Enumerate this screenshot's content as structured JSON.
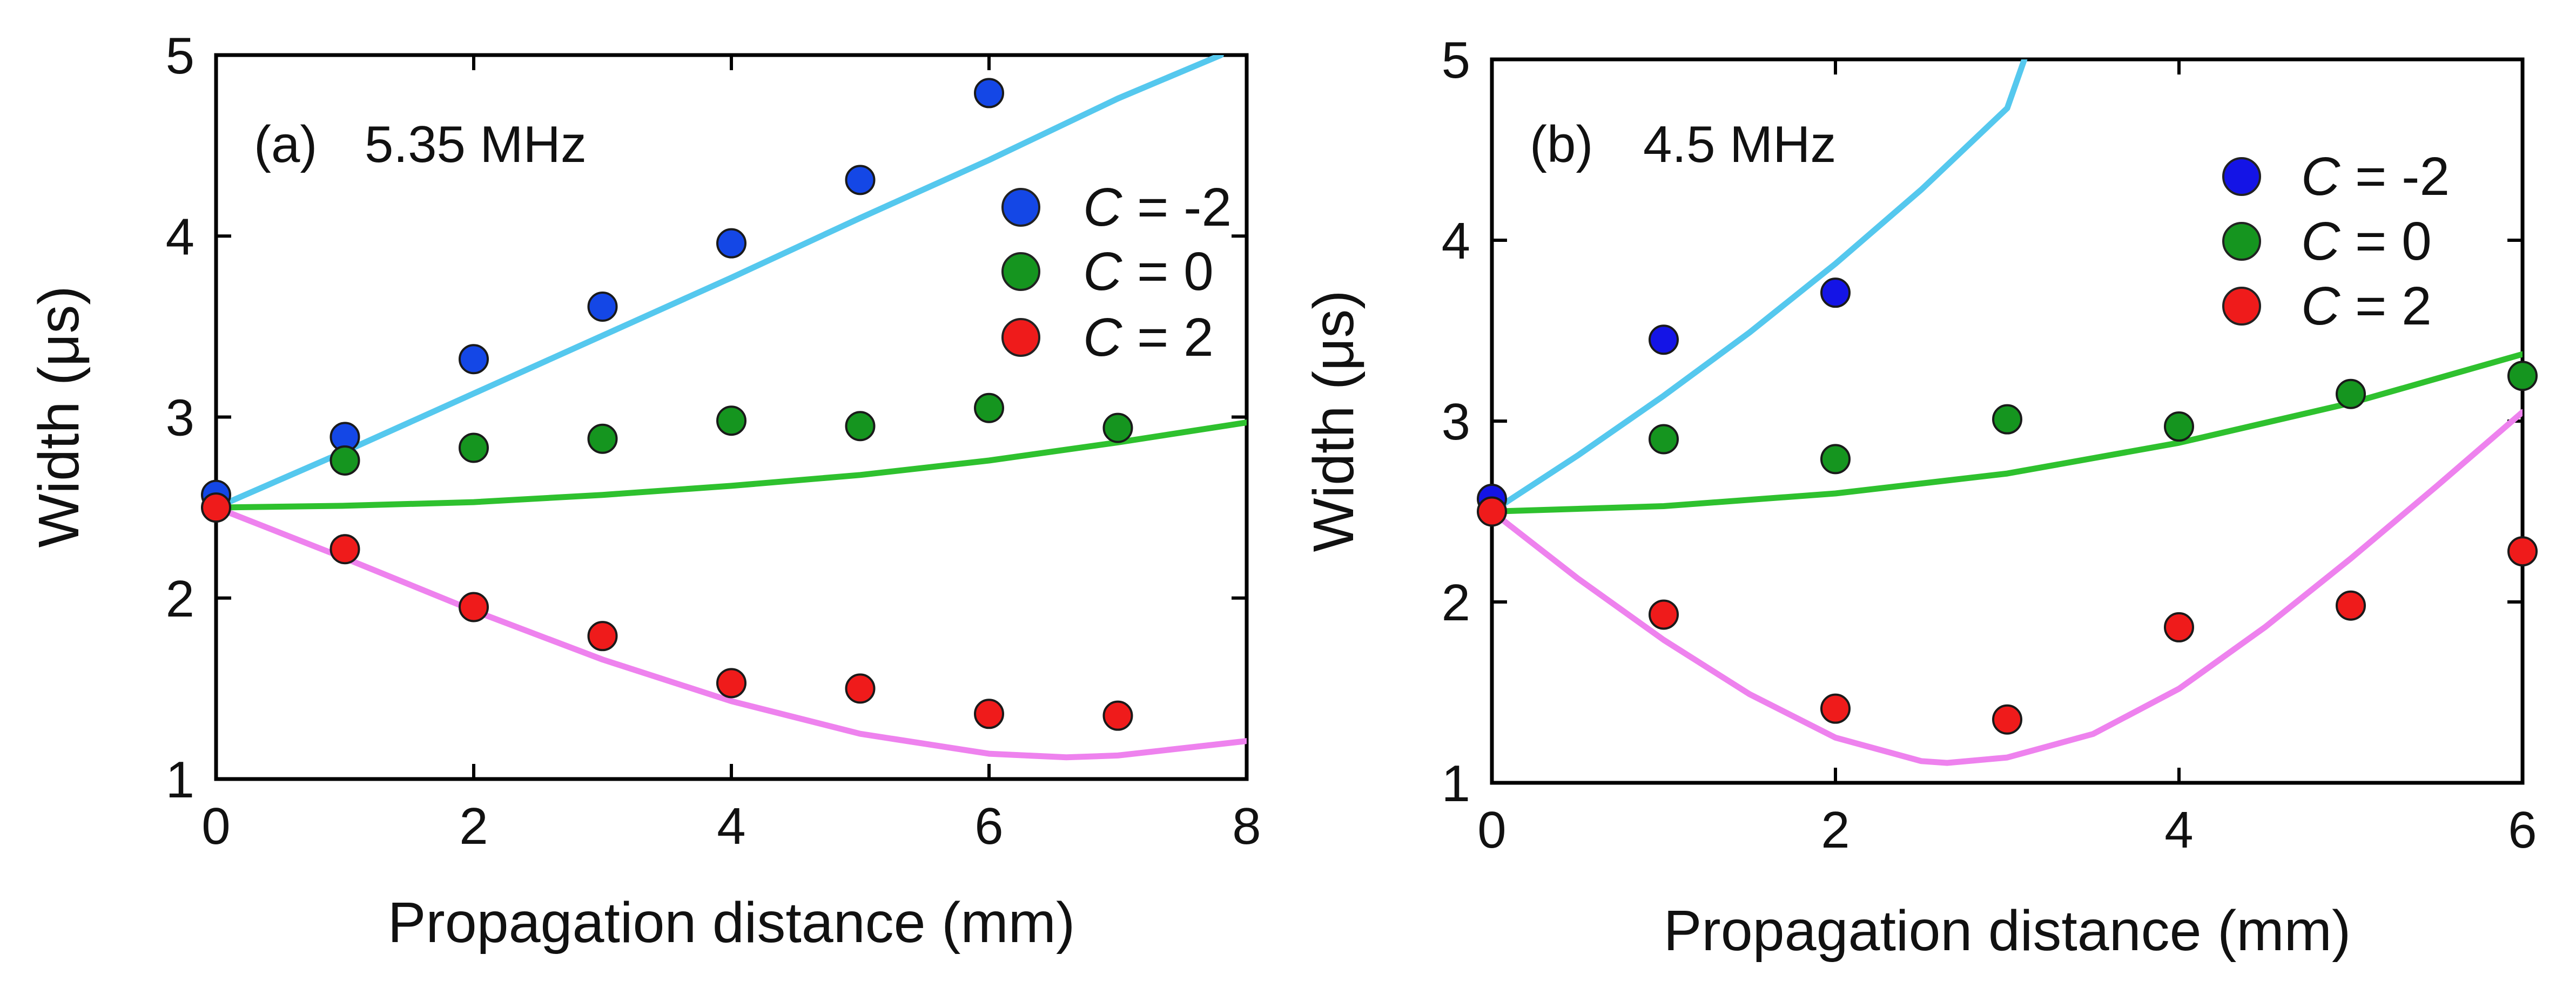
{
  "chart_data": [
    {
      "type": "scatter",
      "panel_label": "(a)",
      "annotation": "5.35 MHz",
      "xlabel": "Propagation distance (mm)",
      "ylabel": "Width (μs)",
      "xlim": [
        0,
        8
      ],
      "ylim": [
        1,
        5
      ],
      "xticks": [
        0,
        2,
        4,
        6,
        8
      ],
      "yticks": [
        1,
        2,
        3,
        4,
        5
      ],
      "grid": false,
      "legend_position": "top-right",
      "series": [
        {
          "name": "C = -2",
          "legend_symbol": "C",
          "legend_value": " = -2",
          "color": "#1447e6",
          "points": {
            "x": [
              0,
              1,
              2,
              3,
              4,
              5,
              6
            ],
            "y": [
              2.57,
              2.89,
              3.32,
              3.61,
              3.96,
              4.31,
              4.79
            ]
          }
        },
        {
          "name": "C = 0",
          "legend_symbol": "C",
          "legend_value": " = 0",
          "color": "#15951f",
          "points": {
            "x": [
              1,
              2,
              3,
              4,
              5,
              6,
              7
            ],
            "y": [
              2.76,
              2.83,
              2.88,
              2.98,
              2.95,
              3.05,
              2.94
            ]
          }
        },
        {
          "name": "C = 2",
          "legend_symbol": "C",
          "legend_value": " = 2",
          "color": "#ef1b1b",
          "points": {
            "x": [
              0,
              1,
              2,
              3,
              4,
              5,
              6,
              7
            ],
            "y": [
              2.5,
              2.27,
              1.95,
              1.79,
              1.53,
              1.5,
              1.36,
              1.35
            ]
          }
        }
      ],
      "fit_curves": [
        {
          "series": "C = -2",
          "color": "#55c8ee",
          "x": [
            0,
            1,
            2,
            3,
            4,
            5,
            6,
            7,
            7.8
          ],
          "y": [
            2.5,
            2.81,
            3.13,
            3.45,
            3.77,
            4.1,
            4.42,
            4.76,
            5.0
          ]
        },
        {
          "series": "C = 0",
          "color": "#2ec12e",
          "x": [
            0,
            1,
            2,
            3,
            4,
            5,
            6,
            7,
            8
          ],
          "y": [
            2.5,
            2.51,
            2.53,
            2.57,
            2.62,
            2.68,
            2.76,
            2.86,
            2.97
          ]
        },
        {
          "series": "C = 2",
          "color": "#ee82ee",
          "x": [
            0,
            1,
            2,
            3,
            4,
            5,
            6,
            6.6,
            7,
            8
          ],
          "y": [
            2.5,
            2.22,
            1.93,
            1.66,
            1.43,
            1.25,
            1.14,
            1.12,
            1.13,
            1.21
          ]
        }
      ]
    },
    {
      "type": "scatter",
      "panel_label": "(b)",
      "annotation": "4.5 MHz",
      "xlabel": "Propagation distance (mm)",
      "ylabel": "Width (μs)",
      "xlim": [
        0,
        6
      ],
      "ylim": [
        1,
        5
      ],
      "xticks": [
        0,
        2,
        4,
        6
      ],
      "yticks": [
        1,
        2,
        3,
        4,
        5
      ],
      "grid": false,
      "legend_position": "top-right",
      "series": [
        {
          "name": "C = -2",
          "legend_symbol": "C",
          "legend_value": " = -2",
          "color": "#1414e6",
          "points": {
            "x": [
              0,
              1,
              2
            ],
            "y": [
              2.57,
              3.45,
              3.71
            ]
          }
        },
        {
          "name": "C = 0",
          "legend_symbol": "C",
          "legend_value": " = 0",
          "color": "#15951f",
          "points": {
            "x": [
              1,
              2,
              3,
              4,
              5,
              6
            ],
            "y": [
              2.9,
              2.79,
              3.01,
              2.97,
              3.15,
              3.25
            ]
          }
        },
        {
          "name": "C = 2",
          "legend_symbol": "C",
          "legend_value": " = 2",
          "color": "#ef1b1b",
          "points": {
            "x": [
              0,
              1,
              2,
              3,
              4,
              5,
              6
            ],
            "y": [
              2.5,
              1.93,
              1.41,
              1.35,
              1.86,
              1.98,
              2.28
            ]
          }
        }
      ],
      "fit_curves": [
        {
          "series": "C = -2",
          "color": "#55c8ee",
          "x": [
            0,
            0.5,
            1,
            1.5,
            2,
            2.5,
            3,
            3.1
          ],
          "y": [
            2.5,
            2.81,
            3.14,
            3.49,
            3.87,
            4.28,
            4.73,
            5.0
          ]
        },
        {
          "series": "C = 0",
          "color": "#2ec12e",
          "x": [
            0,
            1,
            2,
            3,
            4,
            5,
            6
          ],
          "y": [
            2.5,
            2.53,
            2.6,
            2.71,
            2.88,
            3.1,
            3.37
          ]
        },
        {
          "series": "C = 2",
          "color": "#ee82ee",
          "x": [
            0,
            0.5,
            1,
            1.5,
            2,
            2.5,
            2.65,
            3,
            3.5,
            4,
            4.5,
            5,
            5.5,
            6
          ],
          "y": [
            2.5,
            2.13,
            1.79,
            1.49,
            1.25,
            1.12,
            1.11,
            1.14,
            1.27,
            1.52,
            1.86,
            2.24,
            2.64,
            3.05
          ]
        }
      ]
    }
  ]
}
